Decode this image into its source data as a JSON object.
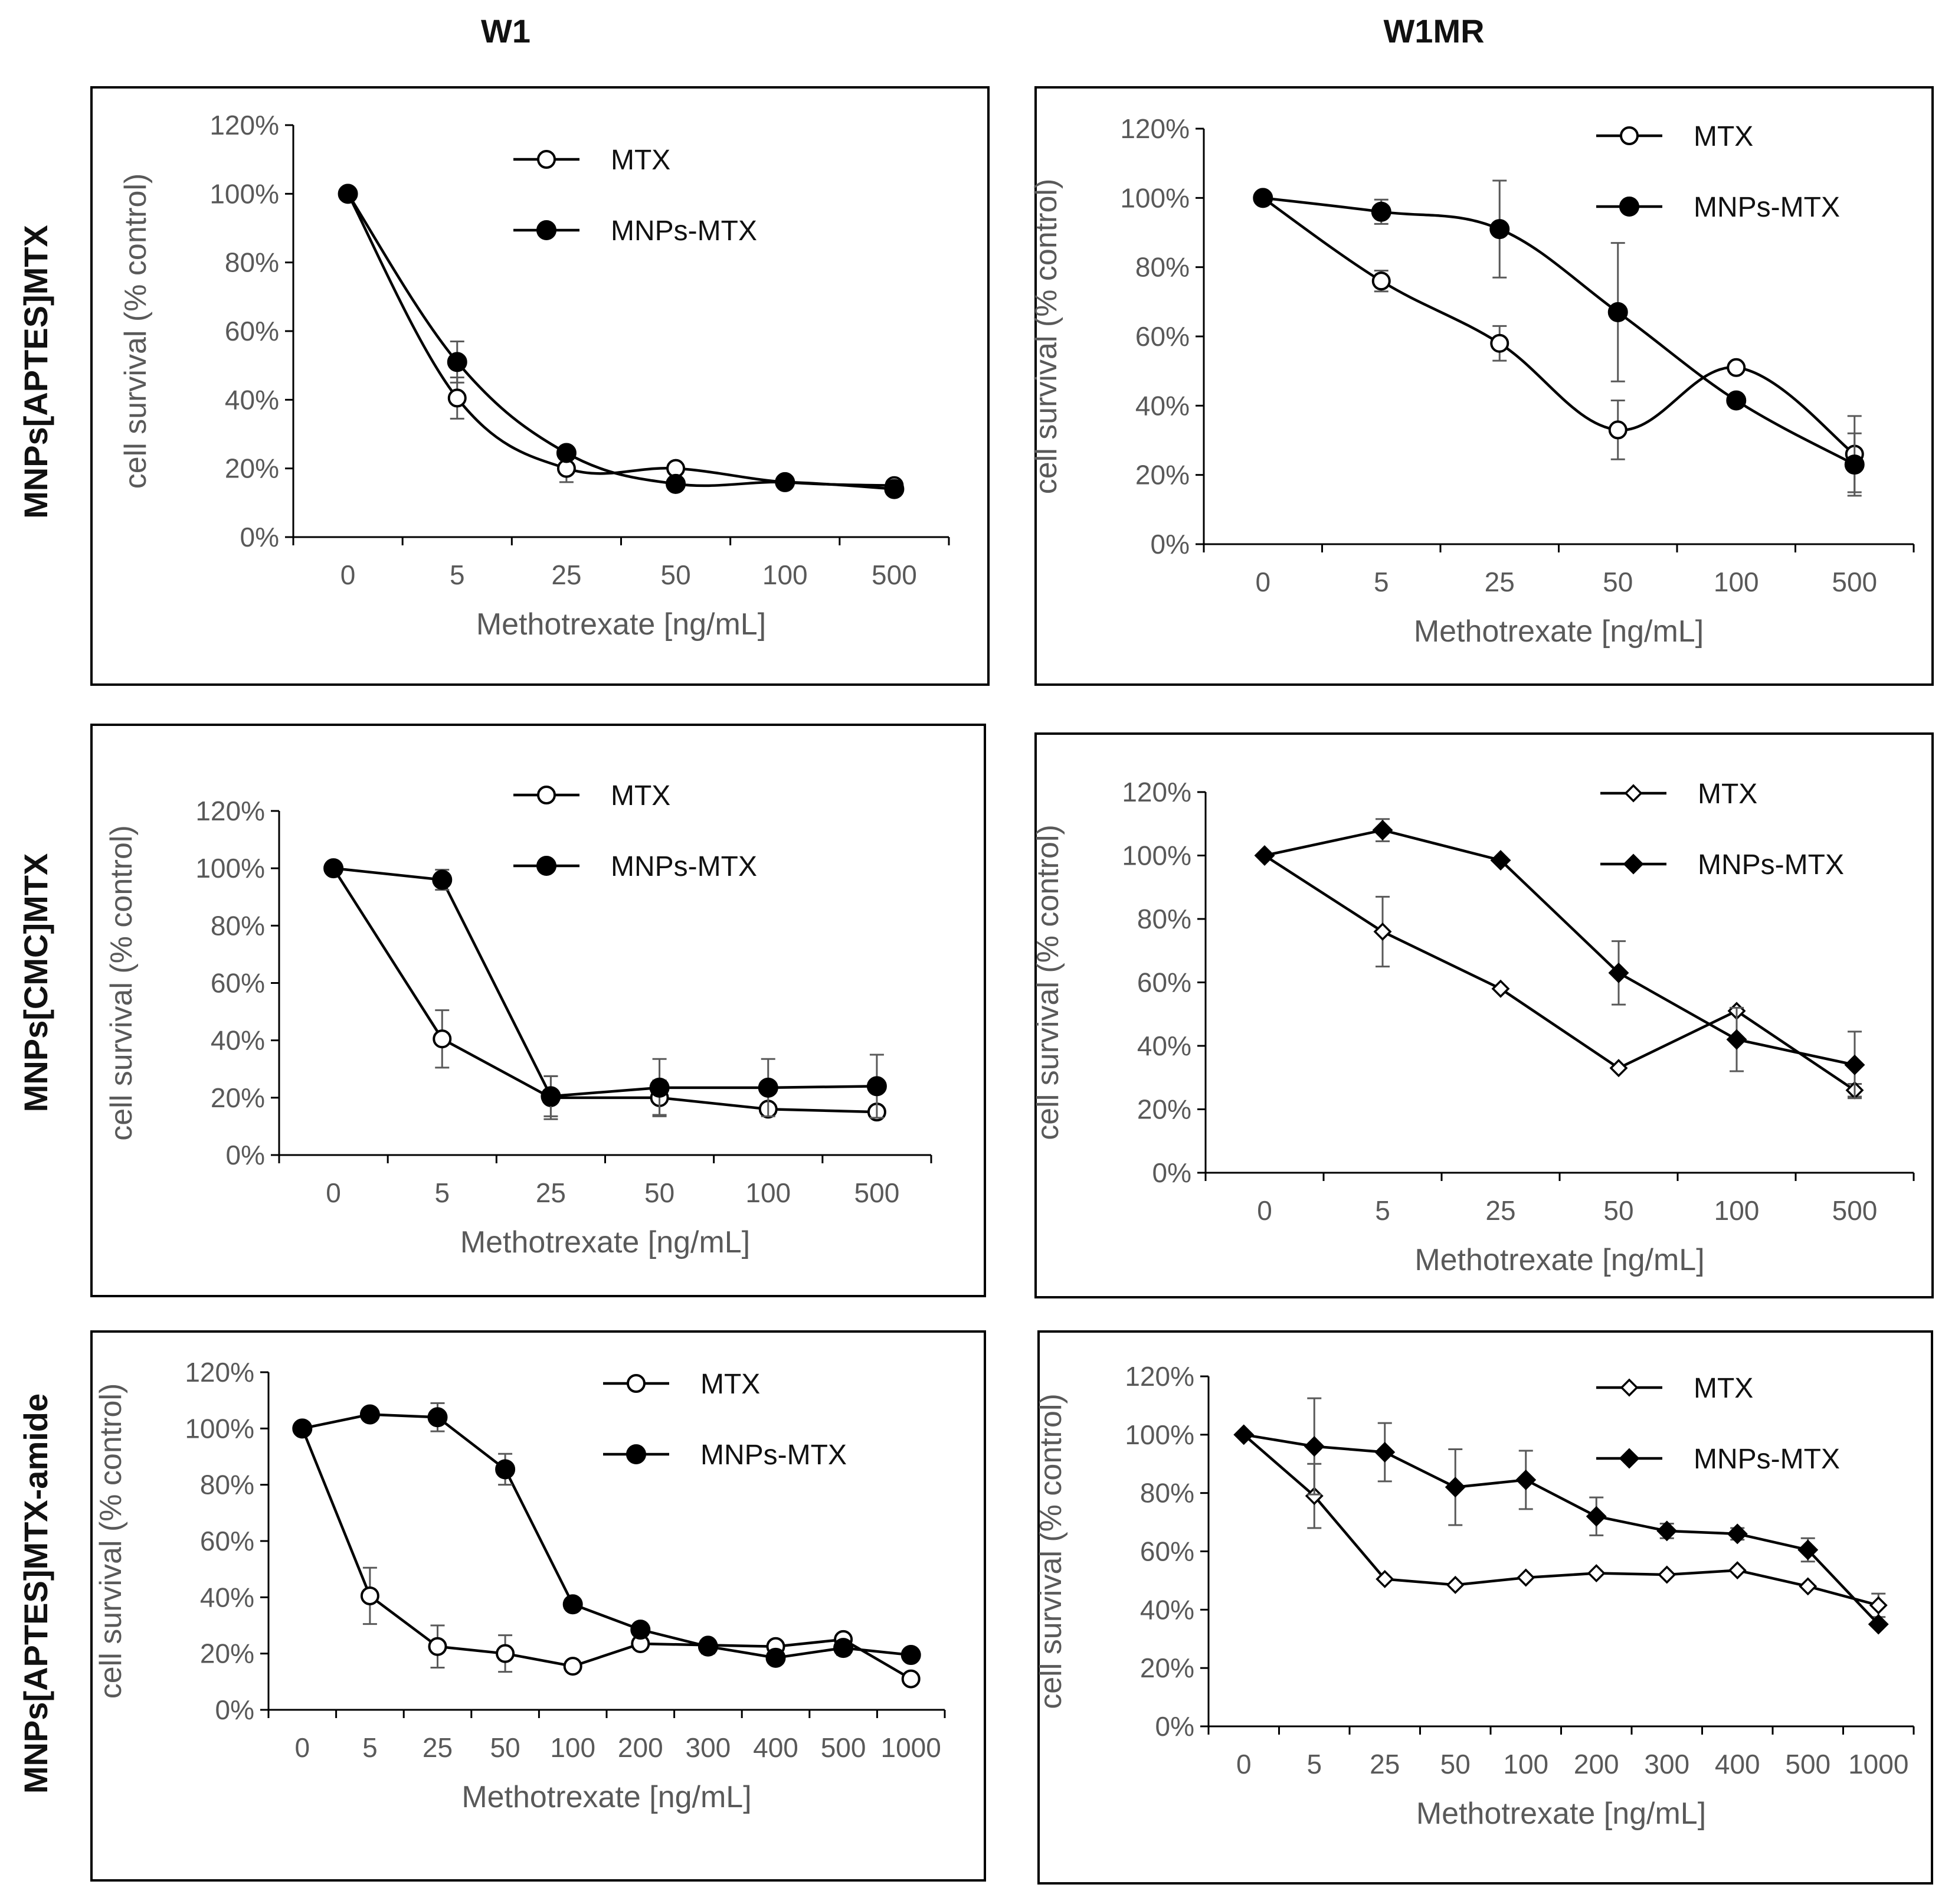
{
  "column_headers": [
    "W1",
    "W1MR"
  ],
  "row_headers": [
    "MNPs[APTES]MTX",
    "MNPs[CMC]MTX",
    "MNPs[APTES]MTX-amide"
  ],
  "colors": {
    "line": "#000000",
    "axis": "#000000",
    "tick_text": "#595959",
    "error_bar": "#595959"
  },
  "chart_data": [
    {
      "type": "line",
      "row": "MNPs[APTES]MTX",
      "column": "W1",
      "categories": [
        "0",
        "5",
        "25",
        "50",
        "100",
        "500"
      ],
      "ylabel": "cell survival (% control)",
      "xlabel": "Methotrexate  [ng/mL]",
      "ylim": [
        0,
        120
      ],
      "yticks": [
        "0%",
        "20%",
        "40%",
        "60%",
        "80%",
        "100%",
        "120%"
      ],
      "smooth": true,
      "legend_position": "top-right",
      "series": [
        {
          "name": "MTX",
          "marker": "circle-open",
          "values": [
            100,
            40.5,
            20,
            20,
            16,
            15
          ],
          "errors": [
            0,
            6,
            4,
            0,
            0,
            0
          ]
        },
        {
          "name": "MNPs-MTX",
          "marker": "circle-filled",
          "values": [
            100,
            51,
            24.5,
            15.5,
            16,
            14
          ],
          "errors": [
            0,
            6,
            0,
            0,
            0,
            0
          ]
        }
      ]
    },
    {
      "type": "line",
      "row": "MNPs[APTES]MTX",
      "column": "W1MR",
      "categories": [
        "0",
        "5",
        "25",
        "50",
        "100",
        "500"
      ],
      "ylabel": "cell survival (% control)",
      "xlabel": "Methotrexate  [ng/mL]",
      "ylim": [
        0,
        120
      ],
      "yticks": [
        "0%",
        "20%",
        "40%",
        "60%",
        "80%",
        "100%",
        "120%"
      ],
      "smooth": true,
      "legend_position": "top-right",
      "series": [
        {
          "name": "MTX",
          "marker": "circle-open",
          "values": [
            100,
            76,
            58,
            33,
            51,
            26
          ],
          "errors": [
            0,
            3,
            5,
            8.5,
            0,
            11
          ]
        },
        {
          "name": "MNPs-MTX",
          "marker": "circle-filled",
          "values": [
            100,
            96,
            91,
            67,
            41.5,
            23
          ],
          "errors": [
            0,
            3.5,
            14,
            20,
            0,
            9
          ]
        }
      ]
    },
    {
      "type": "line",
      "row": "MNPs[CMC]MTX",
      "column": "W1",
      "categories": [
        "0",
        "5",
        "25",
        "50",
        "100",
        "500"
      ],
      "ylabel": "cell survival (% control)",
      "xlabel": "Methotrexate  [ng/mL]",
      "ylim": [
        0,
        120
      ],
      "yticks": [
        "0%",
        "20%",
        "40%",
        "60%",
        "80%",
        "100%",
        "120%"
      ],
      "smooth": false,
      "legend_position": "top-right",
      "series": [
        {
          "name": "MTX",
          "marker": "circle-open",
          "values": [
            100,
            40.5,
            20,
            20,
            16,
            15
          ],
          "errors": [
            0,
            10,
            7.5,
            6,
            0,
            0
          ]
        },
        {
          "name": "MNPs-MTX",
          "marker": "circle-filled",
          "values": [
            100,
            96,
            20.5,
            23.5,
            23.5,
            24
          ],
          "errors": [
            0,
            3.5,
            7,
            10,
            10,
            11
          ]
        }
      ]
    },
    {
      "type": "line",
      "row": "MNPs[CMC]MTX",
      "column": "W1MR",
      "categories": [
        "0",
        "5",
        "25",
        "50",
        "100",
        "500"
      ],
      "ylabel": "cell survival (% control)",
      "xlabel": "Methotrexate  [ng/mL]",
      "ylim": [
        0,
        120
      ],
      "yticks": [
        "0%",
        "20%",
        "40%",
        "60%",
        "80%",
        "100%",
        "120%"
      ],
      "smooth": false,
      "legend_position": "top-right",
      "series": [
        {
          "name": "MTX",
          "marker": "diamond-open",
          "values": [
            100,
            76,
            58,
            33,
            51,
            26
          ],
          "errors": [
            0,
            11,
            0,
            0,
            0,
            2
          ]
        },
        {
          "name": "MNPs-MTX",
          "marker": "diamond-filled",
          "values": [
            100,
            108,
            98.5,
            63,
            42,
            34
          ],
          "errors": [
            0,
            3.5,
            0,
            10,
            10,
            10.5
          ]
        }
      ]
    },
    {
      "type": "line",
      "row": "MNPs[APTES]MTX-amide",
      "column": "W1",
      "categories": [
        "0",
        "5",
        "25",
        "50",
        "100",
        "200",
        "300",
        "400",
        "500",
        "1000"
      ],
      "ylabel": "cell survival (% control)",
      "xlabel": "Methotrexate  [ng/mL]",
      "ylim": [
        0,
        120
      ],
      "yticks": [
        "0%",
        "20%",
        "40%",
        "60%",
        "80%",
        "100%",
        "120%"
      ],
      "smooth": false,
      "legend_position": "top-right",
      "series": [
        {
          "name": "MTX",
          "marker": "circle-open",
          "values": [
            100,
            40.5,
            22.5,
            20,
            15.5,
            23.5,
            23,
            22.5,
            25,
            11
          ],
          "errors": [
            0,
            10,
            7.5,
            6.5,
            0,
            0,
            0,
            0,
            0,
            0
          ]
        },
        {
          "name": "MNPs-MTX",
          "marker": "circle-filled",
          "values": [
            100,
            105,
            104,
            85.5,
            37.5,
            28.5,
            22.5,
            18.5,
            22,
            19.5
          ],
          "errors": [
            0,
            0,
            5,
            5.5,
            0,
            0,
            2.5,
            0,
            2.5,
            0
          ]
        }
      ]
    },
    {
      "type": "line",
      "row": "MNPs[APTES]MTX-amide",
      "column": "W1MR",
      "categories": [
        "0",
        "5",
        "25",
        "50",
        "100",
        "200",
        "300",
        "400",
        "500",
        "1000"
      ],
      "ylabel": "cell survival (% control)",
      "xlabel": "Methotrexate  [ng/mL]",
      "ylim": [
        0,
        120
      ],
      "yticks": [
        "0%",
        "20%",
        "40%",
        "60%",
        "80%",
        "100%",
        "120%"
      ],
      "smooth": false,
      "legend_position": "top-right",
      "series": [
        {
          "name": "MTX",
          "marker": "diamond-open",
          "values": [
            100,
            79,
            50.5,
            48.5,
            51,
            52.5,
            52,
            53.5,
            48,
            41.5
          ],
          "errors": [
            0,
            11,
            0,
            0,
            0,
            0,
            0,
            0,
            0,
            4
          ]
        },
        {
          "name": "MNPs-MTX",
          "marker": "diamond-filled",
          "values": [
            100,
            96,
            94,
            82,
            84.5,
            72,
            67,
            66,
            60.5,
            35
          ],
          "errors": [
            0,
            16.5,
            10,
            13,
            10,
            6.5,
            2.5,
            2,
            4,
            0
          ]
        }
      ]
    }
  ]
}
